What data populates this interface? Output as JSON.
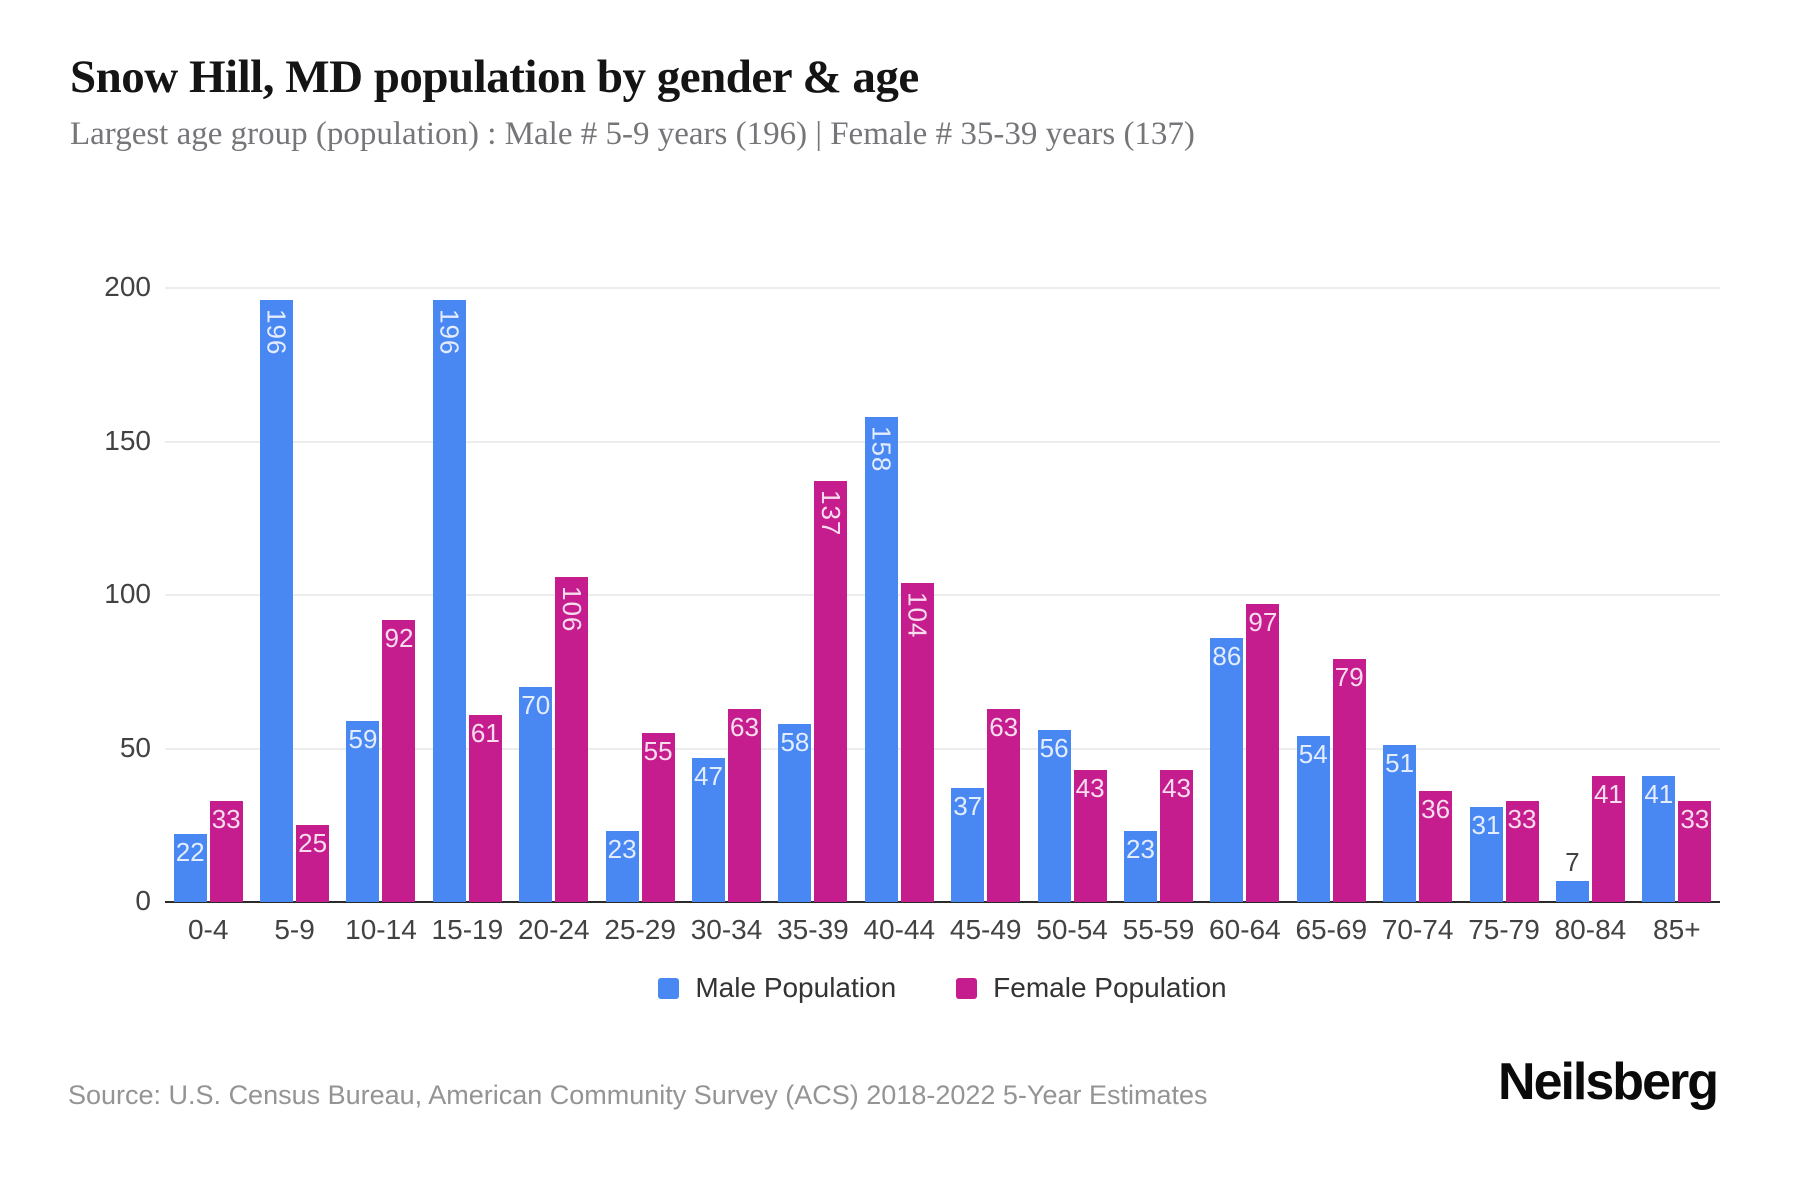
{
  "header": {
    "title": "Snow Hill, MD population by gender & age",
    "subtitle": "Largest age group (population) : Male # 5-9 years (196) | Female # 35-39 years (137)"
  },
  "chart_data": {
    "type": "bar",
    "title": "Snow Hill, MD population by gender & age",
    "categories": [
      "0-4",
      "5-9",
      "10-14",
      "15-19",
      "20-24",
      "25-29",
      "30-34",
      "35-39",
      "40-44",
      "45-49",
      "50-54",
      "55-59",
      "60-64",
      "65-69",
      "70-74",
      "75-79",
      "80-84",
      "85+"
    ],
    "series": [
      {
        "name": "Male Population",
        "color": "#4987f3",
        "values": [
          22,
          196,
          59,
          196,
          70,
          23,
          47,
          58,
          158,
          37,
          56,
          23,
          86,
          54,
          51,
          31,
          7,
          41
        ]
      },
      {
        "name": "Female Population",
        "color": "#c61d8e",
        "values": [
          33,
          25,
          92,
          61,
          106,
          55,
          63,
          137,
          104,
          63,
          43,
          43,
          97,
          79,
          36,
          33,
          41,
          33
        ]
      }
    ],
    "xlabel": "",
    "ylabel": "",
    "ylim": [
      0,
      200
    ],
    "yticks": [
      0,
      50,
      100,
      150,
      200
    ],
    "grid": true,
    "legend_position": "bottom"
  },
  "footer": {
    "source": "Source: U.S. Census Bureau, American Community Survey (ACS) 2018-2022 5-Year Estimates",
    "brand": "Neilsberg"
  }
}
